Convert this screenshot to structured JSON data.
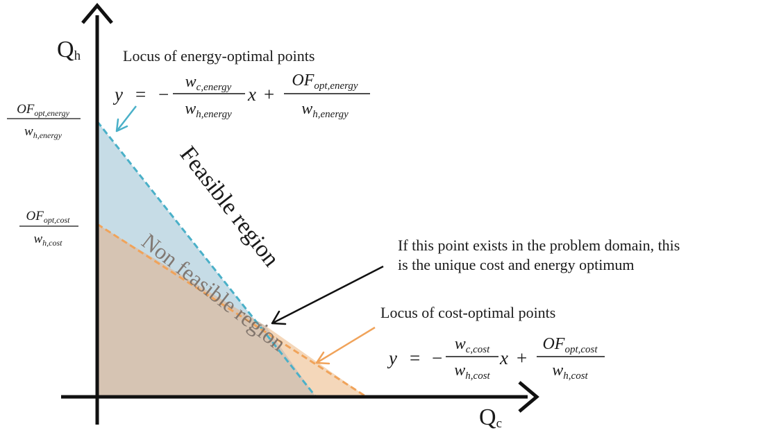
{
  "axes": {
    "y_label": "Q",
    "y_sub": "h",
    "x_label": "Q",
    "x_sub": "c"
  },
  "intercepts": {
    "energy": {
      "num": "OF",
      "num_sub": "opt,energy",
      "den": "w",
      "den_sub": "h,energy"
    },
    "cost": {
      "num": "OF",
      "num_sub": "opt,cost",
      "den": "w",
      "den_sub": "h,cost"
    }
  },
  "energy_locus": {
    "title": "Locus of energy-optimal points",
    "y": "y",
    "eq": "=",
    "minus": "−",
    "frac1_num": "w",
    "frac1_num_sub": "c,energy",
    "frac1_den": "w",
    "frac1_den_sub": "h,energy",
    "x": "x",
    "plus": "+",
    "frac2_num": "OF",
    "frac2_num_sub": "opt,energy",
    "frac2_den": "w",
    "frac2_den_sub": "h,energy",
    "color": "#4ab0c8"
  },
  "cost_locus": {
    "title": "Locus of cost-optimal points",
    "y": "y",
    "eq": "=",
    "minus": "−",
    "frac1_num": "w",
    "frac1_num_sub": "c,cost",
    "frac1_den": "w",
    "frac1_den_sub": "h,cost",
    "x": "x",
    "plus": "+",
    "frac2_num": "OF",
    "frac2_num_sub": "opt,cost",
    "frac2_den": "w",
    "frac2_den_sub": "h,cost",
    "color": "#f0a35a"
  },
  "regions": {
    "feasible": "Feasible region",
    "non_feasible": "Non feasible region"
  },
  "intersection_note": {
    "line1": "If this point exists in the problem domain, this",
    "line2": "is the unique cost and energy optimum"
  },
  "colors": {
    "axis": "#111111",
    "energy_fill": "#bcd6e2",
    "cost_fill": "#d7c2b0",
    "orange_fill": "#f3d5b6"
  }
}
